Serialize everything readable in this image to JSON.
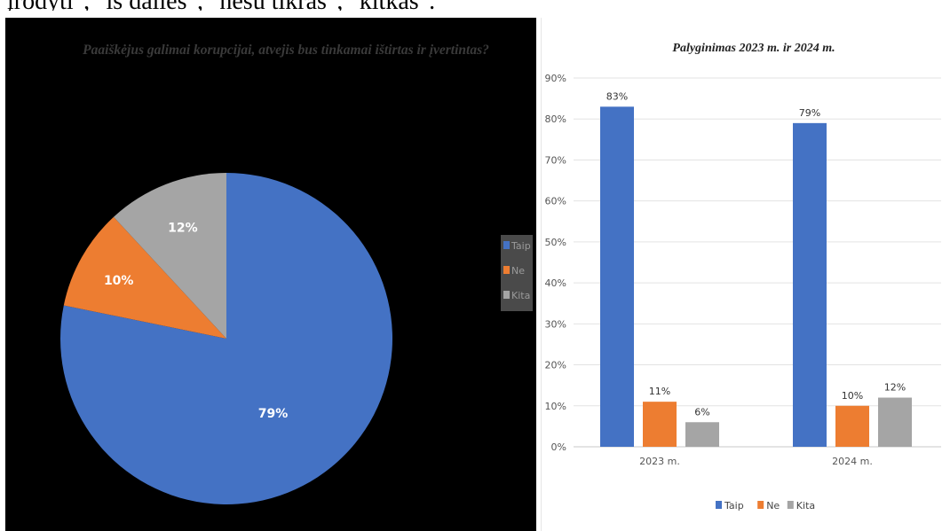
{
  "page": {
    "top_text": "įrodyti\", \"iš dalies\", \"nesu tikras\", \"kitkas\"."
  },
  "chart_data": [
    {
      "type": "pie",
      "title": "Paaiškėjus galimai korupcijai, atvejis bus tinkamai ištirtas ir įvertintas?",
      "categories": [
        "Taip",
        "Ne",
        "Kita"
      ],
      "values": [
        79,
        10,
        12
      ],
      "value_labels": [
        "79%",
        "10%",
        "12%"
      ],
      "colors": [
        "#4472C4",
        "#ED7D31",
        "#A5A5A5"
      ],
      "legend": {
        "position": "right",
        "entries": [
          "Taip",
          "Ne",
          "Kita"
        ]
      },
      "background": "#000000"
    },
    {
      "type": "bar",
      "title": "Palyginimas 2023 m. ir 2024 m.",
      "categories": [
        "2023 m.",
        "2024 m."
      ],
      "series": [
        {
          "name": "Taip",
          "values": [
            83,
            79
          ],
          "labels": [
            "83%",
            "79%"
          ],
          "color": "#4472C4"
        },
        {
          "name": "Ne",
          "values": [
            11,
            10
          ],
          "labels": [
            "11%",
            "10%"
          ],
          "color": "#ED7D31"
        },
        {
          "name": "Kita",
          "values": [
            6,
            12
          ],
          "labels": [
            "6%",
            "12%"
          ],
          "color": "#A5A5A5"
        }
      ],
      "yticks": [
        "0%",
        "10%",
        "20%",
        "30%",
        "40%",
        "50%",
        "60%",
        "70%",
        "80%",
        "90%"
      ],
      "ylim": [
        0,
        90
      ],
      "grid": true,
      "legend": {
        "position": "bottom",
        "entries": [
          "Taip",
          "Ne",
          "Kita"
        ]
      }
    }
  ]
}
